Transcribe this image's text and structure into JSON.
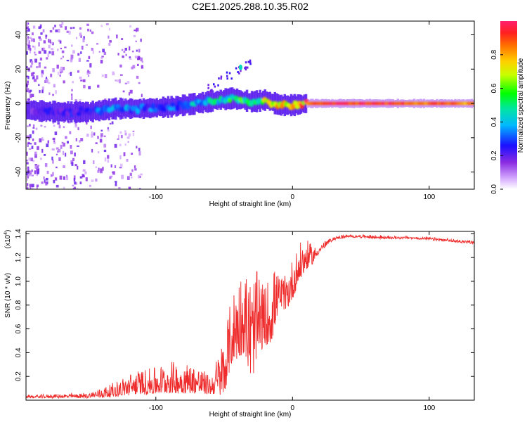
{
  "figure": {
    "title": "C2E1.2025.288.10.35.R02"
  },
  "chart_data": [
    {
      "type": "heatmap",
      "title": "C2E1.2025.288.10.35.R02",
      "xlabel": "Height of straight line (km)",
      "ylabel": "Frequency (Hz)",
      "xlim": [
        -195,
        133
      ],
      "ylim": [
        -50,
        48
      ],
      "xticks": [
        -100,
        0,
        100
      ],
      "yticks": [
        -40,
        -20,
        0,
        20,
        40
      ],
      "colorbar": {
        "label": "Normalized spectral amplitude",
        "range": [
          0,
          1
        ],
        "ticks": [
          0.0,
          0.2,
          0.4,
          0.6,
          0.8
        ]
      },
      "feature_track": {
        "description_x_km": [
          -195,
          -170,
          -150,
          -130,
          -110,
          -90,
          -70,
          -55,
          -45,
          -38,
          -30,
          -20,
          -10,
          0,
          10,
          30,
          60,
          90,
          133
        ],
        "center_freq_hz": [
          -4,
          -5,
          -5,
          -3,
          -3,
          -2,
          0,
          2,
          3,
          2,
          1,
          2,
          -1,
          -1,
          0,
          0,
          0,
          0,
          0
        ],
        "amplitude": [
          0.2,
          0.25,
          0.3,
          0.4,
          0.35,
          0.35,
          0.45,
          0.5,
          0.55,
          0.6,
          0.7,
          0.75,
          0.8,
          0.85,
          0.9,
          0.95,
          0.95,
          0.9,
          0.85
        ]
      }
    },
    {
      "type": "line",
      "xlabel": "Height of straight line (km)",
      "ylabel": "SNR (10 * v/v)",
      "y_multiplier_label": "(x10",
      "y_multiplier_exp": "4",
      "color": "#ee2a2a",
      "xlim": [
        -195,
        133
      ],
      "ylim": [
        0,
        1.42
      ],
      "xticks": [
        -100,
        0,
        100
      ],
      "yticks": [
        0.2,
        0.4,
        0.6,
        0.8,
        1.0,
        1.2,
        1.4
      ],
      "envelope_x": [
        -195,
        -150,
        -130,
        -115,
        -100,
        -90,
        -80,
        -70,
        -60,
        -50,
        -45,
        -40,
        -35,
        -30,
        -25,
        -20,
        -15,
        -10,
        -5,
        0,
        5,
        10,
        15,
        20,
        25,
        30,
        35,
        40,
        50,
        60,
        70,
        80,
        90,
        100,
        110,
        120,
        133
      ],
      "envelope_base": [
        0.02,
        0.02,
        0.03,
        0.05,
        0.05,
        0.06,
        0.06,
        0.06,
        0.05,
        0.04,
        0.3,
        0.35,
        0.4,
        0.15,
        0.4,
        0.45,
        0.5,
        0.78,
        0.75,
        0.85,
        1.0,
        1.1,
        1.15,
        1.25,
        1.3,
        1.35,
        1.36,
        1.37,
        1.37,
        1.36,
        1.36,
        1.36,
        1.36,
        1.35,
        1.34,
        1.33,
        1.32
      ],
      "envelope_peak": [
        0.04,
        0.06,
        0.15,
        0.25,
        0.28,
        0.33,
        0.32,
        0.3,
        0.2,
        0.55,
        0.85,
        1.1,
        1.1,
        1.05,
        1.1,
        0.95,
        1.15,
        1.05,
        1.05,
        1.2,
        1.32,
        1.35,
        1.3,
        1.3,
        1.35,
        1.37,
        1.39,
        1.39,
        1.39,
        1.39,
        1.38,
        1.38,
        1.37,
        1.37,
        1.36,
        1.35,
        1.34
      ]
    }
  ]
}
